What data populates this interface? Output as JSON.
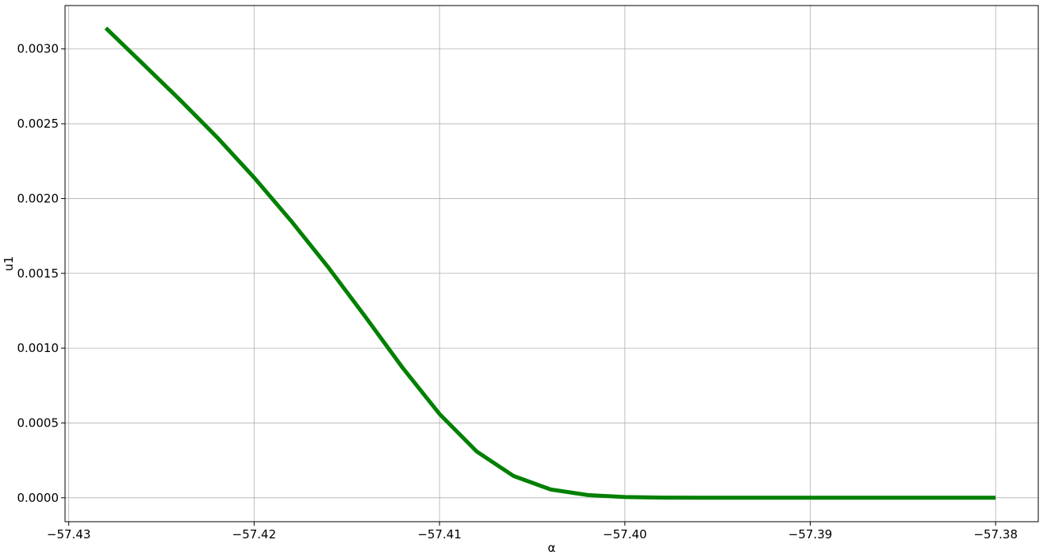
{
  "chart_data": {
    "type": "line",
    "title": "",
    "xlabel": "α",
    "ylabel": "u1",
    "xlim": [
      -57.4302,
      -57.3777
    ],
    "ylim": [
      -0.00016,
      0.00329
    ],
    "grid": true,
    "x_ticks": [
      {
        "value": -57.43,
        "label": "−57.43"
      },
      {
        "value": -57.42,
        "label": "−57.42"
      },
      {
        "value": -57.41,
        "label": "−57.41"
      },
      {
        "value": -57.4,
        "label": "−57.40"
      },
      {
        "value": -57.39,
        "label": "−57.39"
      },
      {
        "value": -57.38,
        "label": "−57.38"
      }
    ],
    "y_ticks": [
      {
        "value": 0.0,
        "label": "0.0000"
      },
      {
        "value": 0.0005,
        "label": "0.0005"
      },
      {
        "value": 0.001,
        "label": "0.0010"
      },
      {
        "value": 0.0015,
        "label": "0.0015"
      },
      {
        "value": 0.002,
        "label": "0.0020"
      },
      {
        "value": 0.0025,
        "label": "0.0025"
      },
      {
        "value": 0.003,
        "label": "0.0030"
      }
    ],
    "series": [
      {
        "color": "#008000",
        "x": [
          -57.428,
          -57.426,
          -57.424,
          -57.422,
          -57.42,
          -57.418,
          -57.416,
          -57.414,
          -57.412,
          -57.41,
          -57.408,
          -57.406,
          -57.404,
          -57.402,
          -57.4,
          -57.398,
          -57.396,
          -57.394,
          -57.392,
          -57.39,
          -57.388,
          -57.386,
          -57.384,
          -57.382,
          -57.38
        ],
        "y": [
          0.00314,
          0.0029,
          0.00266,
          0.00241,
          0.00214,
          0.00185,
          0.00154,
          0.00121,
          0.00087,
          0.00056,
          0.00031,
          0.000145,
          5.5e-05,
          1.8e-05,
          5e-06,
          1e-06,
          0.0,
          0.0,
          0.0,
          0.0,
          0.0,
          0.0,
          0.0,
          0.0,
          0.0
        ]
      }
    ]
  }
}
